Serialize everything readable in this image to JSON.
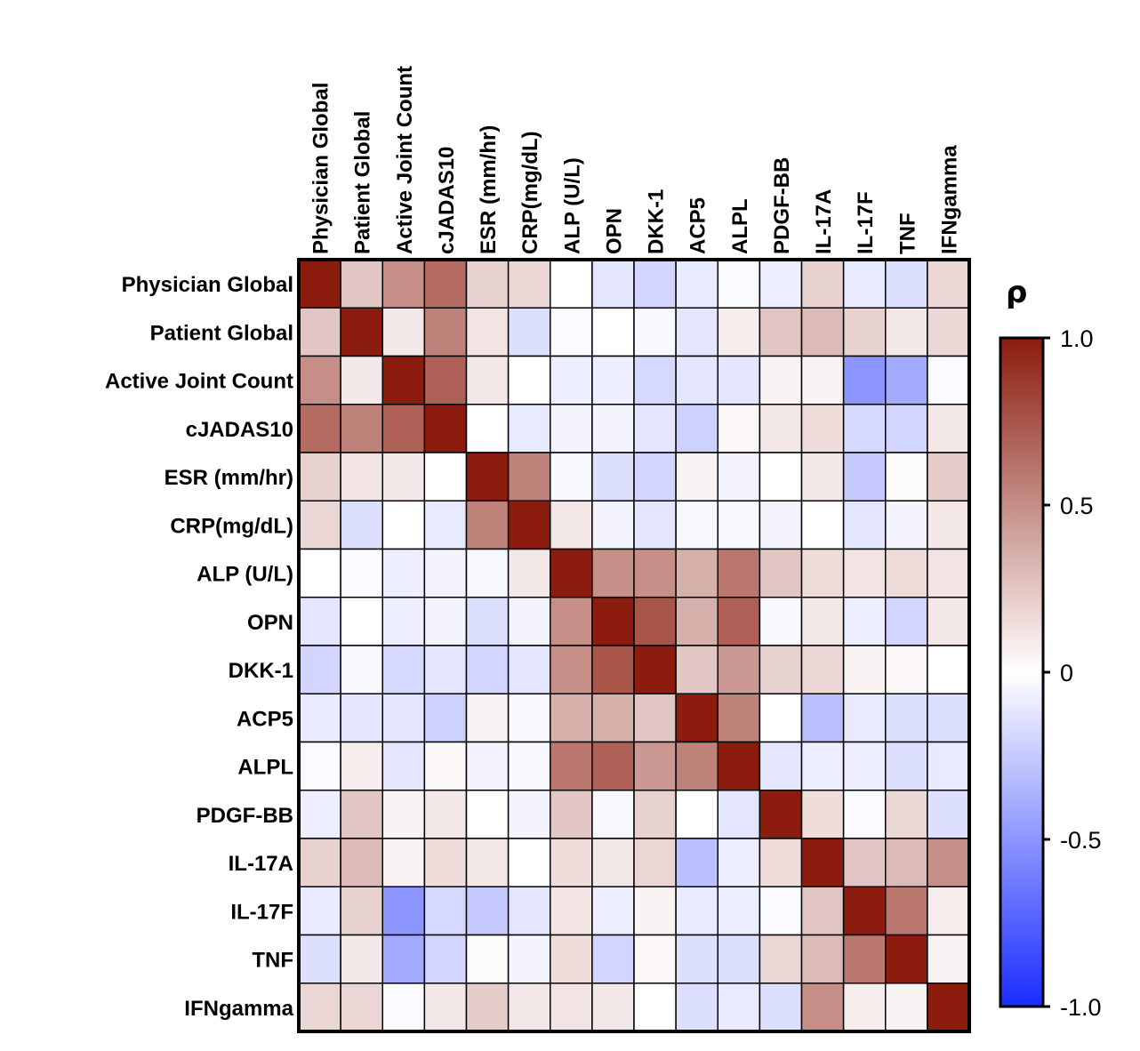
{
  "chart_data": {
    "type": "heatmap",
    "title": "",
    "xlabel": "",
    "ylabel": "",
    "labels": [
      "Physician Global",
      "Patient Global",
      "Active Joint Count",
      "cJADAS10",
      "ESR (mm/hr)",
      "CRP(mg/dL)",
      "ALP (U/L)",
      "OPN",
      "DKK-1",
      "ACP5",
      "ALPL",
      "PDGF-BB",
      "IL-17A",
      "IL-17F",
      "TNF",
      "IFNgamma"
    ],
    "row_labels": [
      "Physician Global",
      "Patient Global",
      "Active Joint Count",
      "cJADAS10",
      "ESR (mm/hr)",
      "CRP(mg/dL)",
      "ALP (U/L)",
      "OPN",
      "DKK-1",
      "ACP5",
      "ALPL",
      "PDGF-BB",
      "IL-17A",
      "IL-17F",
      "TNF",
      "IFNgamma"
    ],
    "matrix": [
      [
        1.0,
        0.25,
        0.5,
        0.65,
        0.2,
        0.18,
        0.0,
        -0.12,
        -0.2,
        -0.1,
        -0.02,
        -0.08,
        0.2,
        -0.1,
        -0.15,
        0.18
      ],
      [
        0.25,
        1.0,
        0.1,
        0.55,
        0.12,
        -0.15,
        -0.02,
        0.0,
        -0.03,
        -0.12,
        0.08,
        0.25,
        0.3,
        0.2,
        0.1,
        0.18
      ],
      [
        0.5,
        0.1,
        1.0,
        0.7,
        0.1,
        0.0,
        -0.08,
        -0.08,
        -0.18,
        -0.12,
        -0.12,
        0.05,
        0.05,
        -0.5,
        -0.4,
        -0.02
      ],
      [
        0.65,
        0.55,
        0.7,
        1.0,
        0.0,
        -0.1,
        -0.05,
        -0.05,
        -0.12,
        -0.22,
        0.03,
        0.1,
        0.15,
        -0.18,
        -0.2,
        0.1
      ],
      [
        0.2,
        0.12,
        0.1,
        0.0,
        1.0,
        0.55,
        -0.03,
        -0.15,
        -0.2,
        0.05,
        -0.05,
        0.0,
        0.1,
        -0.25,
        0.02,
        0.22
      ],
      [
        0.18,
        -0.15,
        0.0,
        -0.1,
        0.55,
        1.0,
        0.1,
        -0.05,
        -0.12,
        -0.03,
        -0.03,
        -0.05,
        0.0,
        -0.12,
        -0.05,
        0.1
      ],
      [
        0.0,
        -0.02,
        -0.08,
        -0.05,
        -0.03,
        0.1,
        1.0,
        0.5,
        0.5,
        0.35,
        0.6,
        0.25,
        0.15,
        0.12,
        0.15,
        0.12
      ],
      [
        -0.12,
        0.0,
        -0.08,
        -0.05,
        -0.15,
        -0.05,
        0.5,
        1.0,
        0.75,
        0.35,
        0.7,
        -0.03,
        0.1,
        -0.08,
        -0.2,
        0.1
      ],
      [
        -0.2,
        -0.03,
        -0.18,
        -0.12,
        -0.2,
        -0.12,
        0.5,
        0.75,
        1.0,
        0.25,
        0.45,
        0.2,
        0.18,
        0.05,
        0.03,
        0.0
      ],
      [
        -0.1,
        -0.12,
        -0.12,
        -0.22,
        0.05,
        -0.03,
        0.35,
        0.35,
        0.25,
        1.0,
        0.55,
        0.0,
        -0.3,
        -0.1,
        -0.15,
        -0.15
      ],
      [
        -0.02,
        0.08,
        -0.12,
        0.03,
        -0.05,
        -0.03,
        0.6,
        0.7,
        0.45,
        0.55,
        1.0,
        -0.12,
        -0.08,
        -0.08,
        -0.15,
        -0.1
      ],
      [
        -0.08,
        0.25,
        0.05,
        0.1,
        0.0,
        -0.05,
        0.25,
        -0.03,
        0.2,
        0.0,
        -0.12,
        1.0,
        0.15,
        -0.02,
        0.18,
        -0.15
      ],
      [
        0.2,
        0.3,
        0.05,
        0.15,
        0.1,
        0.0,
        0.15,
        0.1,
        0.18,
        -0.3,
        -0.08,
        0.15,
        1.0,
        0.25,
        0.3,
        0.5
      ],
      [
        -0.1,
        0.2,
        -0.5,
        -0.18,
        -0.25,
        -0.12,
        0.12,
        -0.08,
        0.05,
        -0.1,
        -0.08,
        -0.02,
        0.25,
        1.0,
        0.6,
        0.08
      ],
      [
        -0.15,
        0.1,
        -0.4,
        -0.2,
        0.02,
        -0.05,
        0.15,
        -0.2,
        0.03,
        -0.15,
        -0.15,
        0.18,
        0.3,
        0.6,
        1.0,
        0.05
      ],
      [
        0.18,
        0.18,
        -0.02,
        0.1,
        0.22,
        0.1,
        0.12,
        0.1,
        0.0,
        -0.15,
        -0.1,
        -0.15,
        0.5,
        0.08,
        0.05,
        1.0
      ]
    ],
    "colorbar": {
      "label": "ρ",
      "range": [
        -1.0,
        1.0
      ],
      "ticks": [
        1.0,
        0.5,
        0,
        -0.5,
        -1.0
      ],
      "tick_labels": [
        "1.0",
        "0.5",
        "0",
        "-0.5",
        "-1.0"
      ],
      "color_low": "#1a2cff",
      "color_mid": "#ffffff",
      "color_high": "#8b1c0e"
    }
  }
}
